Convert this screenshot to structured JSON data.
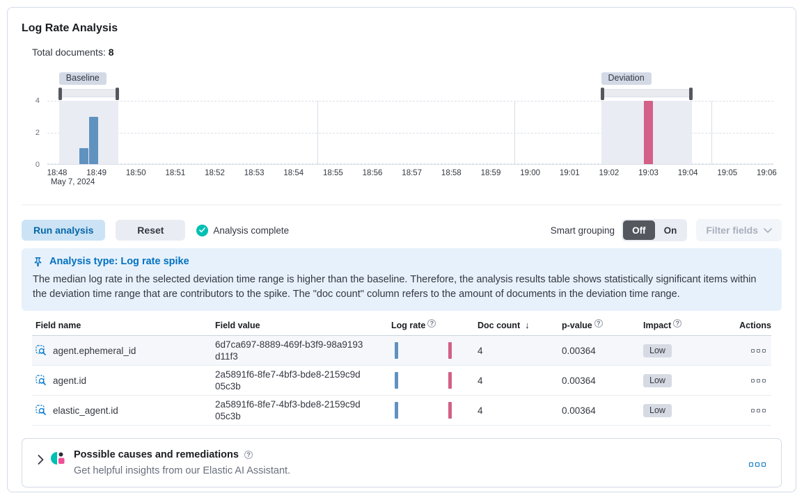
{
  "page": {
    "title": "Log Rate Analysis",
    "total_documents_label": "Total documents:",
    "total_documents_value": "8"
  },
  "chart_data": {
    "type": "bar",
    "title": "Document count over time with baseline and deviation ranges",
    "x_axis_date_label": "May 7, 2024",
    "x_ticks": [
      "18:48",
      "18:49",
      "18:50",
      "18:51",
      "18:52",
      "18:53",
      "18:54",
      "18:55",
      "18:56",
      "18:57",
      "18:58",
      "18:59",
      "19:00",
      "19:01",
      "19:02",
      "19:03",
      "19:04",
      "19:05",
      "19:06"
    ],
    "y_ticks": [
      0,
      2,
      4
    ],
    "ylim": [
      0,
      4
    ],
    "grid_minutes": [
      6.6,
      11.6,
      16.6
    ],
    "bar_width_minutes": 0.23,
    "bars": [
      {
        "time": "18:48:35",
        "minute": 0.56,
        "value": 1,
        "series": "baseline"
      },
      {
        "time": "18:48:50",
        "minute": 0.81,
        "value": 3,
        "series": "baseline"
      },
      {
        "time": "19:03",
        "minute": 14.88,
        "value": 4,
        "series": "deviation"
      }
    ],
    "baseline_brush": {
      "label": "Baseline",
      "from_minute": 0.05,
      "to_minute": 1.55
    },
    "deviation_brush": {
      "label": "Deviation",
      "from_minute": 13.8,
      "to_minute": 16.1
    },
    "colors": {
      "baseline_bar": "#6092C0",
      "deviation_bar": "#D36086",
      "overlay": "#E9ECF3",
      "brush_handle": "#54575E"
    }
  },
  "toolbar": {
    "run_button": "Run analysis",
    "reset_button": "Reset",
    "status": "Analysis complete",
    "smart_grouping_label": "Smart grouping",
    "toggle_off": "Off",
    "toggle_on": "On",
    "toggle_state": "Off",
    "filter_fields": "Filter fields"
  },
  "callout": {
    "title": "Analysis type: Log rate spike",
    "body": "The median log rate in the selected deviation time range is higher than the baseline. Therefore, the analysis results table shows statistically significant items within the deviation time range that are contributors to the spike. The \"doc count\" column refers to the amount of documents in the deviation time range."
  },
  "table": {
    "columns": {
      "field_name": "Field name",
      "field_value": "Field value",
      "log_rate": "Log rate",
      "doc_count": "Doc count",
      "doc_count_sort": "↓",
      "p_value": "p-value",
      "impact": "Impact",
      "actions": "Actions"
    },
    "rows": [
      {
        "field_name": "agent.ephemeral_id",
        "field_value": "6d7ca697-8889-469f-b3f9-98a9193d11f3",
        "doc_count": "4",
        "p_value": "0.00364",
        "impact": "Low"
      },
      {
        "field_name": "agent.id",
        "field_value": "2a5891f6-8fe7-4bf3-bde8-2159c9d05c3b",
        "doc_count": "4",
        "p_value": "0.00364",
        "impact": "Low"
      },
      {
        "field_name": "elastic_agent.id",
        "field_value": "2a5891f6-8fe7-4bf3-bde8-2159c9d05c3b",
        "doc_count": "4",
        "p_value": "0.00364",
        "impact": "Low"
      }
    ]
  },
  "insights_panel": {
    "title": "Possible causes and remediations",
    "subtitle": "Get helpful insights from our Elastic AI Assistant."
  }
}
